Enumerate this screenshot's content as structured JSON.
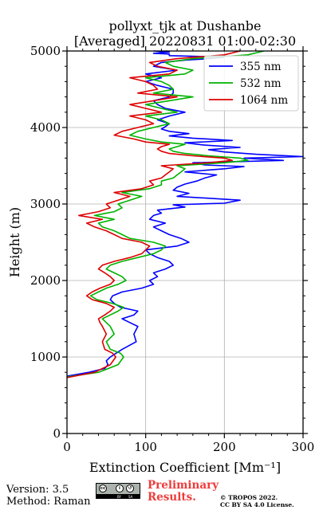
{
  "chart_data": {
    "type": "line",
    "title": "pollyxt_tjk at Dushanbe",
    "subtitle": "[Averaged] 20220831 01:00-02:30",
    "xlabel": "Extinction Coefficient [Mm⁻¹]",
    "ylabel": "Height (m)",
    "xlim": [
      0,
      300
    ],
    "ylim": [
      0,
      5000
    ],
    "x_ticks": [
      "0",
      "100",
      "200",
      "300"
    ],
    "y_ticks": [
      "0",
      "1000",
      "2000",
      "3000",
      "4000",
      "5000"
    ],
    "grid": true,
    "legend_position": "top-right",
    "series": [
      {
        "name": "355 nm",
        "color": "#0000ff",
        "x": [
          0,
          28,
          48,
          52,
          50,
          55,
          70,
          88,
          85,
          90,
          80,
          70,
          85,
          90,
          68,
          60,
          55,
          58,
          70,
          95,
          110,
          105,
          115,
          110,
          125,
          135,
          130,
          115,
          105,
          100,
          140,
          155,
          145,
          130,
          120,
          110,
          125,
          105,
          110,
          120,
          115,
          150,
          135,
          200,
          220,
          140,
          155,
          135,
          140,
          150,
          165,
          175,
          190,
          150,
          200,
          225,
          175,
          160,
          275,
          225,
          300,
          240,
          200,
          180,
          220,
          175,
          150,
          210,
          160,
          130,
          155,
          130,
          120,
          125,
          130,
          115,
          130,
          150,
          125,
          115,
          110,
          130,
          135,
          135,
          115,
          100,
          120,
          100,
          140,
          110,
          120,
          150,
          180,
          200,
          130,
          130,
          110,
          130,
          110
        ],
        "y": [
          750,
          800,
          850,
          900,
          950,
          1000,
          1100,
          1200,
          1300,
          1400,
          1450,
          1500,
          1550,
          1600,
          1650,
          1700,
          1750,
          1800,
          1850,
          1900,
          1950,
          2000,
          2050,
          2100,
          2150,
          2200,
          2250,
          2300,
          2350,
          2400,
          2450,
          2500,
          2550,
          2600,
          2650,
          2700,
          2750,
          2800,
          2850,
          2880,
          2920,
          2960,
          2990,
          3010,
          3050,
          3100,
          3140,
          3180,
          3220,
          3260,
          3300,
          3340,
          3380,
          3420,
          3460,
          3490,
          3510,
          3540,
          3570,
          3600,
          3620,
          3650,
          3680,
          3710,
          3740,
          3770,
          3800,
          3830,
          3860,
          3890,
          3920,
          3950,
          3980,
          4010,
          4050,
          4100,
          4150,
          4200,
          4250,
          4300,
          4350,
          4400,
          4450,
          4500,
          4550,
          4600,
          4650,
          4700,
          4750,
          4800,
          4850,
          4880,
          4900,
          4920,
          4940,
          4960,
          4970,
          4985,
          5000
        ]
      },
      {
        "name": "532 nm",
        "color": "#00b300",
        "x": [
          0,
          40,
          65,
          72,
          68,
          55,
          50,
          60,
          55,
          50,
          45,
          55,
          65,
          72,
          58,
          38,
          30,
          40,
          50,
          65,
          75,
          70,
          60,
          50,
          55,
          70,
          90,
          110,
          120,
          125,
          110,
          80,
          70,
          60,
          45,
          40,
          60,
          35,
          60,
          70,
          65,
          80,
          95,
          70,
          105,
          120,
          120,
          135,
          140,
          145,
          150,
          140,
          200,
          230,
          220,
          180,
          150,
          135,
          130,
          140,
          150,
          120,
          100,
          80,
          90,
          110,
          130,
          120,
          100,
          140,
          120,
          100,
          130,
          160,
          110,
          135,
          130,
          120,
          100,
          150,
          160,
          135,
          125,
          160,
          230,
          250
        ],
        "y": [
          740,
          800,
          900,
          1000,
          1050,
          1100,
          1200,
          1300,
          1400,
          1450,
          1500,
          1550,
          1600,
          1650,
          1700,
          1750,
          1800,
          1850,
          1900,
          1950,
          2000,
          2050,
          2100,
          2150,
          2200,
          2250,
          2300,
          2350,
          2400,
          2450,
          2500,
          2550,
          2600,
          2650,
          2700,
          2750,
          2800,
          2850,
          2900,
          2950,
          3000,
          3050,
          3100,
          3150,
          3200,
          3250,
          3300,
          3340,
          3380,
          3420,
          3460,
          3500,
          3540,
          3570,
          3600,
          3630,
          3660,
          3690,
          3720,
          3750,
          3780,
          3810,
          3850,
          3900,
          3950,
          4000,
          4050,
          4100,
          4150,
          4200,
          4250,
          4300,
          4350,
          4400,
          4450,
          4500,
          4550,
          4600,
          4650,
          4700,
          4750,
          4800,
          4850,
          4900,
          4950,
          5000
        ]
      },
      {
        "name": "1064 nm",
        "color": "#dd0000",
        "x": [
          0,
          35,
          55,
          62,
          58,
          48,
          45,
          50,
          45,
          42,
          40,
          48,
          55,
          60,
          50,
          32,
          25,
          32,
          42,
          55,
          60,
          55,
          48,
          40,
          45,
          60,
          80,
          95,
          100,
          105,
          95,
          70,
          60,
          50,
          35,
          25,
          45,
          15,
          40,
          55,
          50,
          65,
          80,
          60,
          95,
          110,
          105,
          120,
          125,
          130,
          135,
          120,
          180,
          210,
          200,
          160,
          130,
          120,
          115,
          120,
          130,
          100,
          85,
          60,
          70,
          90,
          110,
          100,
          80,
          120,
          100,
          80,
          110,
          140,
          90,
          115,
          110,
          100,
          80,
          130,
          140,
          115,
          105,
          140,
          200,
          220
        ],
        "y": [
          730,
          800,
          900,
          1000,
          1050,
          1100,
          1200,
          1300,
          1400,
          1450,
          1500,
          1550,
          1600,
          1650,
          1700,
          1750,
          1800,
          1850,
          1900,
          1950,
          2000,
          2050,
          2100,
          2150,
          2200,
          2250,
          2300,
          2350,
          2400,
          2450,
          2500,
          2550,
          2600,
          2650,
          2700,
          2750,
          2800,
          2850,
          2900,
          2950,
          3000,
          3050,
          3100,
          3150,
          3200,
          3250,
          3300,
          3340,
          3380,
          3420,
          3460,
          3500,
          3540,
          3570,
          3600,
          3630,
          3660,
          3690,
          3720,
          3750,
          3780,
          3810,
          3850,
          3900,
          3950,
          4000,
          4050,
          4100,
          4150,
          4200,
          4250,
          4300,
          4350,
          4400,
          4450,
          4500,
          4550,
          4600,
          4650,
          4700,
          4750,
          4800,
          4850,
          4900,
          4950,
          5000
        ]
      }
    ]
  },
  "footer": {
    "version": "Version: 3.5",
    "method": "Method: Raman",
    "preliminary": "Preliminary\nResults.",
    "copyright_line1": "© TROPOS 2022.",
    "copyright_line2": "CC BY SA 4.0 License.",
    "license_badge": [
      "cc",
      "i",
      "↺",
      "BY",
      "SA"
    ]
  }
}
